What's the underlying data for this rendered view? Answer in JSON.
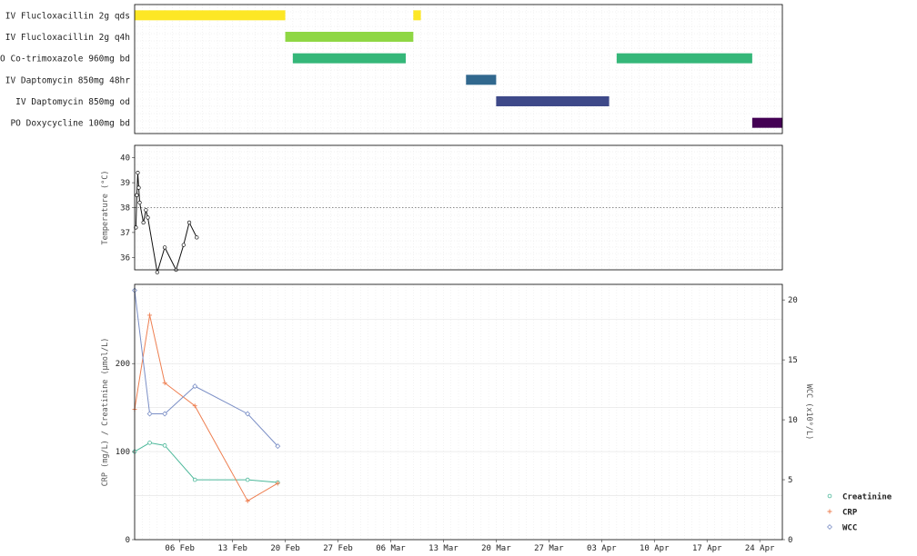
{
  "chart_data": [
    {
      "type": "gantt",
      "panel": "medications",
      "tasks": [
        {
          "name": "IV Flucloxacillin 2g qds",
          "segments": [
            [
              "2025-01-31",
              "2025-02-20"
            ],
            [
              "2025-03-09",
              "2025-03-10"
            ]
          ],
          "color": "#fde725"
        },
        {
          "name": "IV Flucloxacillin 2g q4h",
          "segments": [
            [
              "2025-02-20",
              "2025-03-09"
            ]
          ],
          "color": "#8fd744"
        },
        {
          "name": "PO Co-trimoxazole 960mg bd",
          "segments": [
            [
              "2025-02-21",
              "2025-03-08"
            ],
            [
              "2025-04-05",
              "2025-04-23"
            ]
          ],
          "color": "#35b779"
        },
        {
          "name": "IV Daptomycin 850mg 48hr",
          "segments": [
            [
              "2025-03-16",
              "2025-03-20"
            ]
          ],
          "color": "#31688e"
        },
        {
          "name": "IV Daptomycin 850mg od",
          "segments": [
            [
              "2025-03-20",
              "2025-04-04"
            ]
          ],
          "color": "#3e4989"
        },
        {
          "name": "PO Doxycycline 100mg bd",
          "segments": [
            [
              "2025-04-23",
              "2025-04-27"
            ]
          ],
          "color": "#440154"
        }
      ],
      "xlim": [
        "2025-01-31",
        "2025-04-27"
      ]
    },
    {
      "type": "line",
      "panel": "temperature",
      "ylabel": "Temperature (°C)",
      "ylim": [
        35.5,
        40.5
      ],
      "yticks": [
        36,
        37,
        38,
        39,
        40
      ],
      "reference_line": 38,
      "x": [
        "2025-01-31 04:00",
        "2025-01-31 07:00",
        "2025-01-31 10:00",
        "2025-01-31 13:00",
        "2025-01-31 16:00",
        "2025-02-01 04:00",
        "2025-02-01 12:00",
        "2025-02-01 18:00",
        "2025-02-03 00:00",
        "2025-02-04 00:00",
        "2025-02-05 12:00",
        "2025-02-06 12:00",
        "2025-02-07 06:00",
        "2025-02-08 06:00"
      ],
      "values": [
        37.2,
        38.5,
        39.4,
        38.8,
        38.2,
        37.4,
        37.9,
        37.6,
        35.4,
        36.4,
        35.5,
        36.5,
        37.4,
        36.8
      ]
    },
    {
      "type": "line",
      "panel": "labs",
      "ylabel": "CRP (mg/L) / Creatinine (μmol/L)",
      "y2label": "WCC (x10⁹/L)",
      "ylim": [
        0,
        290
      ],
      "yticks": [
        0,
        100,
        200
      ],
      "y2lim": [
        0,
        21.3
      ],
      "y2ticks": [
        0,
        5,
        10,
        15,
        20
      ],
      "xticks": [
        "06 Feb",
        "13 Feb",
        "20 Feb",
        "27 Feb",
        "06 Mar",
        "13 Mar",
        "20 Mar",
        "27 Mar",
        "03 Apr",
        "10 Apr",
        "17 Apr",
        "24 Apr"
      ],
      "series": [
        {
          "name": "Creatinine",
          "color": "#4cb89a",
          "marker": "circle",
          "axis": "left",
          "x": [
            "2025-01-31",
            "2025-02-02",
            "2025-02-04",
            "2025-02-08",
            "2025-02-15",
            "2025-02-19"
          ],
          "values": [
            100,
            110,
            107,
            68,
            68,
            65
          ]
        },
        {
          "name": "CRP",
          "color": "#ee7f51",
          "marker": "plus",
          "axis": "left",
          "x": [
            "2025-01-31",
            "2025-02-02",
            "2025-02-04",
            "2025-02-08",
            "2025-02-15",
            "2025-02-19"
          ],
          "values": [
            148,
            255,
            178,
            152,
            44,
            64
          ]
        },
        {
          "name": "WCC",
          "color": "#7b8fc6",
          "marker": "diamond",
          "axis": "right",
          "x": [
            "2025-01-31",
            "2025-02-02",
            "2025-02-04",
            "2025-02-08",
            "2025-02-15",
            "2025-02-19"
          ],
          "values": [
            20.8,
            10.5,
            10.5,
            12.8,
            10.5,
            7.8
          ]
        }
      ],
      "legend_position": "right"
    }
  ]
}
